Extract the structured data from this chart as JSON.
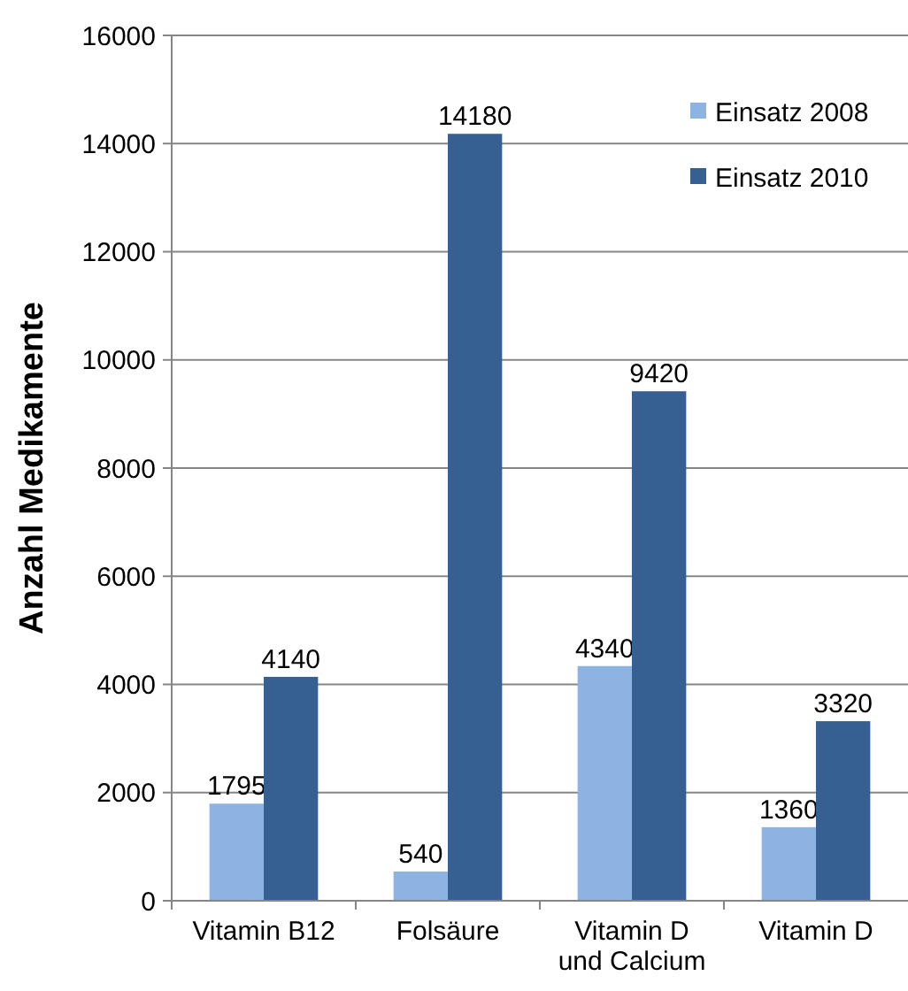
{
  "chart_data": {
    "type": "bar",
    "ylabel": "Anzahl Medikamente",
    "categories": [
      "Vitamin B12",
      "Folsäure",
      "Vitamin D und Calcium",
      "Vitamin D"
    ],
    "series": [
      {
        "name": "Einsatz 2008",
        "color": "#8db3e2",
        "values": [
          1795,
          540,
          4340,
          1360
        ]
      },
      {
        "name": "Einsatz 2010",
        "color": "#376092",
        "values": [
          4140,
          14180,
          9420,
          3320
        ]
      }
    ],
    "ylim": [
      0,
      16000
    ],
    "yticks": [
      0,
      2000,
      4000,
      6000,
      8000,
      10000,
      12000,
      14000,
      16000
    ],
    "grid": "y",
    "legend": "top right",
    "data_labels": true
  }
}
